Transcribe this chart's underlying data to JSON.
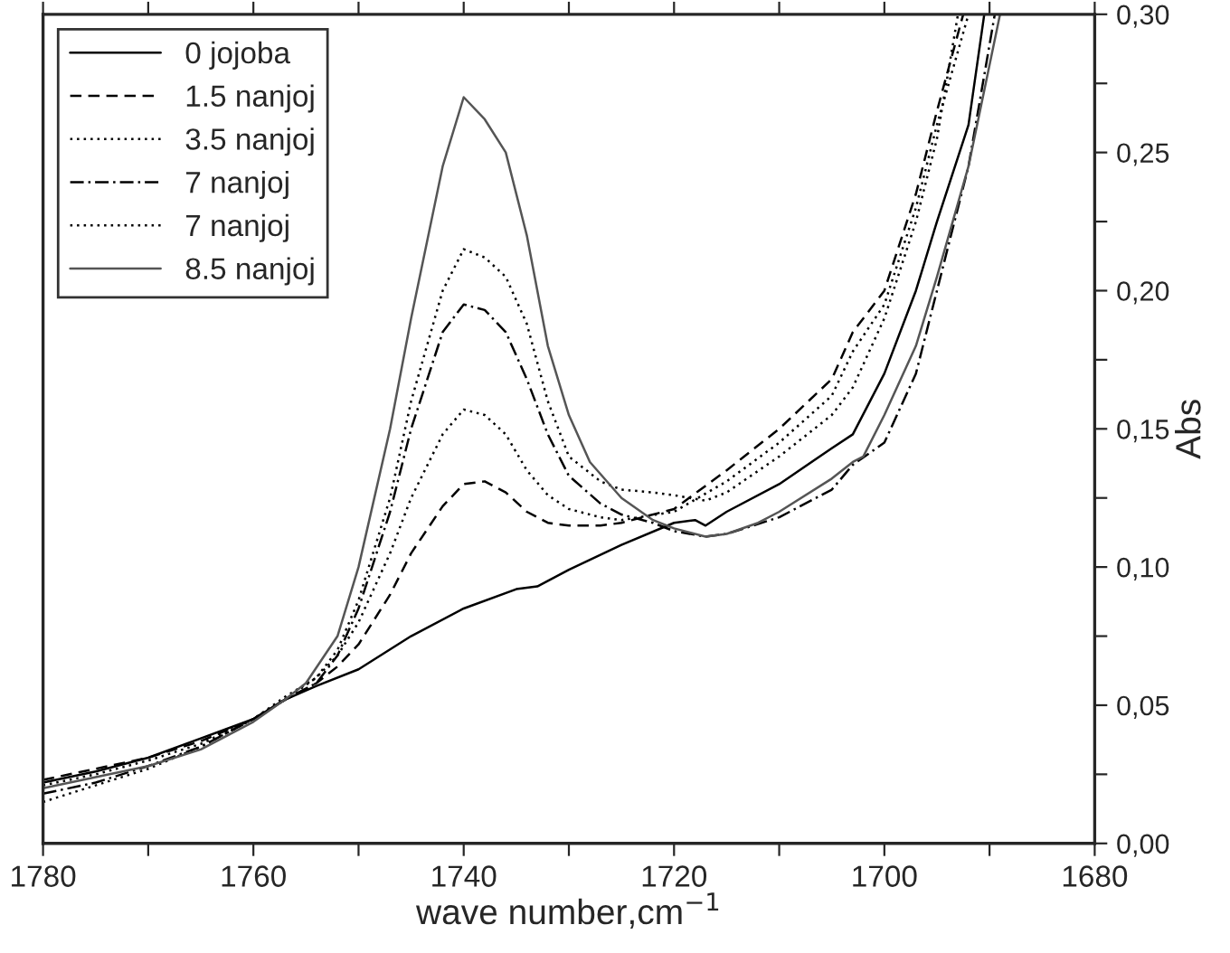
{
  "chart_data": {
    "type": "line",
    "xlabel": "wave number,cm$^{−1}$",
    "ylabel": "Abs",
    "xlim": [
      1780,
      1680
    ],
    "xticks": [
      1780,
      {
        "value": 1770,
        "label": null
      },
      1760,
      {
        "value": 1750,
        "label": null
      },
      1740,
      {
        "value": 1730,
        "label": null
      },
      1720,
      {
        "value": 1710,
        "label": null
      },
      1700,
      {
        "value": 1690,
        "label": null
      },
      1680
    ],
    "ylim": [
      0,
      0.3
    ],
    "yticks": [
      {
        "value": 0,
        "label": "0,00"
      },
      {
        "value": 0.025,
        "label": null
      },
      {
        "value": 0.05,
        "label": "0,05"
      },
      {
        "value": 0.075,
        "label": null
      },
      {
        "value": 0.1,
        "label": "0,10"
      },
      {
        "value": 0.125,
        "label": null
      },
      {
        "value": 0.15,
        "label": "0,15"
      },
      {
        "value": 0.175,
        "label": null
      },
      {
        "value": 0.2,
        "label": "0,20"
      },
      {
        "value": 0.225,
        "label": null
      },
      {
        "value": 0.25,
        "label": "0,25"
      },
      {
        "value": 0.275,
        "label": null
      },
      {
        "value": 0.3,
        "label": "0,30"
      }
    ],
    "grid": false,
    "legend": "top left",
    "marker": "none",
    "series": [
      {
        "name": "0 jojoba",
        "color": "#000000",
        "line_style": "solid",
        "x": [
          1780,
          1775,
          1770,
          1765,
          1760,
          1757,
          1754,
          1750,
          1745,
          1740,
          1735,
          1733,
          1730,
          1725,
          1720,
          1718,
          1717,
          1715,
          1710,
          1705,
          1703,
          1700,
          1697,
          1695,
          1692,
          1690.5
        ],
        "values": [
          0.022,
          0.026,
          0.031,
          0.038,
          0.045,
          0.052,
          0.057,
          0.063,
          0.075,
          0.085,
          0.092,
          0.093,
          0.099,
          0.108,
          0.116,
          0.117,
          0.115,
          0.12,
          0.13,
          0.143,
          0.148,
          0.17,
          0.2,
          0.225,
          0.26,
          0.3
        ]
      },
      {
        "name": "1.5 nanjoj",
        "color": "#000000",
        "line_style": "dashed",
        "x": [
          1780,
          1775,
          1770,
          1765,
          1760,
          1757,
          1754,
          1752,
          1750,
          1747,
          1745,
          1742,
          1740,
          1738,
          1736,
          1734,
          1732,
          1730,
          1727,
          1725,
          1720,
          1715,
          1710,
          1705,
          1703,
          1700,
          1697,
          1695,
          1692.5
        ],
        "values": [
          0.023,
          0.027,
          0.031,
          0.037,
          0.045,
          0.052,
          0.058,
          0.064,
          0.072,
          0.09,
          0.105,
          0.122,
          0.13,
          0.131,
          0.127,
          0.12,
          0.116,
          0.115,
          0.115,
          0.116,
          0.121,
          0.135,
          0.15,
          0.168,
          0.185,
          0.2,
          0.235,
          0.265,
          0.3
        ]
      },
      {
        "name": "3.5 nanjoj",
        "color": "#000000",
        "line_style": "dotted",
        "x": [
          1780,
          1775,
          1770,
          1765,
          1760,
          1757,
          1754,
          1752,
          1750,
          1747,
          1745,
          1742,
          1740,
          1738,
          1736,
          1734,
          1732,
          1730,
          1727,
          1725,
          1720,
          1715,
          1710,
          1705,
          1703,
          1700,
          1697,
          1695,
          1692
        ],
        "values": [
          0.015,
          0.021,
          0.027,
          0.035,
          0.045,
          0.053,
          0.06,
          0.068,
          0.08,
          0.105,
          0.125,
          0.148,
          0.157,
          0.155,
          0.148,
          0.135,
          0.126,
          0.121,
          0.118,
          0.117,
          0.12,
          0.131,
          0.145,
          0.162,
          0.178,
          0.195,
          0.23,
          0.26,
          0.3
        ]
      },
      {
        "name": "7 nanjoj",
        "color": "#000000",
        "line_style": "dashdot",
        "x": [
          1780,
          1775,
          1770,
          1765,
          1760,
          1757,
          1754,
          1752,
          1750,
          1747,
          1745,
          1742,
          1740,
          1738,
          1736,
          1734,
          1732,
          1730,
          1727,
          1725,
          1722,
          1720,
          1717,
          1715,
          1710,
          1705,
          1703,
          1700,
          1697,
          1695,
          1692,
          1689.5
        ],
        "values": [
          0.018,
          0.022,
          0.028,
          0.035,
          0.045,
          0.052,
          0.058,
          0.068,
          0.085,
          0.12,
          0.15,
          0.185,
          0.195,
          0.193,
          0.185,
          0.168,
          0.148,
          0.133,
          0.123,
          0.119,
          0.116,
          0.113,
          0.111,
          0.112,
          0.118,
          0.128,
          0.137,
          0.145,
          0.17,
          0.2,
          0.245,
          0.3
        ]
      },
      {
        "name": "7 nanjoj",
        "color": "#000000",
        "line_style": "dotted",
        "x": [
          1780,
          1775,
          1770,
          1765,
          1760,
          1757,
          1754,
          1752,
          1750,
          1747,
          1745,
          1742,
          1740,
          1738,
          1736,
          1734,
          1732,
          1730,
          1727,
          1725,
          1722,
          1720,
          1717,
          1715,
          1710,
          1705,
          1703,
          1700,
          1697,
          1695,
          1693
        ],
        "values": [
          0.021,
          0.025,
          0.03,
          0.036,
          0.045,
          0.052,
          0.06,
          0.07,
          0.088,
          0.125,
          0.16,
          0.2,
          0.215,
          0.212,
          0.205,
          0.188,
          0.16,
          0.14,
          0.131,
          0.128,
          0.127,
          0.126,
          0.124,
          0.127,
          0.14,
          0.155,
          0.165,
          0.19,
          0.225,
          0.255,
          0.3
        ]
      },
      {
        "name": "8.5 nanjoj",
        "color": "#555555",
        "line_style": "solid",
        "x": [
          1780,
          1775,
          1770,
          1765,
          1760,
          1757,
          1755,
          1752,
          1750,
          1747,
          1745,
          1742,
          1740,
          1738,
          1736,
          1734,
          1732,
          1730,
          1728,
          1725,
          1722,
          1720,
          1717,
          1715,
          1712,
          1710,
          1705,
          1703,
          1702,
          1700,
          1697,
          1695,
          1692,
          1689
        ],
        "values": [
          0.02,
          0.024,
          0.028,
          0.034,
          0.044,
          0.052,
          0.058,
          0.075,
          0.1,
          0.15,
          0.19,
          0.245,
          0.27,
          0.262,
          0.25,
          0.22,
          0.18,
          0.155,
          0.138,
          0.125,
          0.117,
          0.114,
          0.111,
          0.112,
          0.116,
          0.12,
          0.132,
          0.138,
          0.14,
          0.155,
          0.18,
          0.205,
          0.245,
          0.3
        ]
      }
    ]
  }
}
